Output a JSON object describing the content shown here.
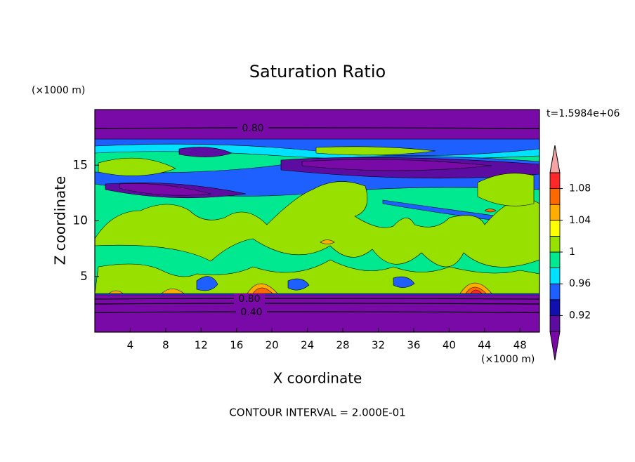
{
  "chart_data": {
    "type": "contour",
    "title": "Saturation Ratio",
    "x_label": "X coordinate",
    "y_label": "Z coordinate",
    "x_unit": "(×1000 m)",
    "y_unit": "(×1000 m)",
    "time_label": "t=1.5984e+06",
    "footer": "CONTOUR INTERVAL = 2.000E-01",
    "xlim": [
      0,
      50.2
    ],
    "xticks": [
      4,
      8,
      12,
      16,
      20,
      24,
      28,
      32,
      36,
      40,
      44,
      48
    ],
    "ylim": [
      0,
      20
    ],
    "yticks": [
      5,
      10,
      15
    ],
    "levels": [
      0.9,
      0.92,
      0.94,
      0.96,
      0.98,
      1.0,
      1.02,
      1.04,
      1.06,
      1.08,
      1.1
    ],
    "colors": [
      "#7a0aa8",
      "#5c0ca0",
      "#1010b0",
      "#1e60ff",
      "#00e0ff",
      "#00e890",
      "#98e000",
      "#ffff00",
      "#ffae00",
      "#ff6a00",
      "#ff2828",
      "#f4a4a4"
    ],
    "colorbar_ticks": [
      {
        "value": 0.92,
        "label": "0.92"
      },
      {
        "value": 0.96,
        "label": "0.96"
      },
      {
        "value": 1.0,
        "label": "1"
      },
      {
        "value": 1.04,
        "label": "1.04"
      },
      {
        "value": 1.08,
        "label": "1.08"
      }
    ],
    "contour_labels": [
      "0.80",
      "0.80",
      "0.40"
    ]
  }
}
